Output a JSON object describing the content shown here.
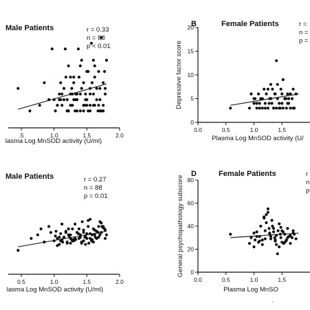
{
  "chart_data": [
    {
      "type": "scatter",
      "panel": "A",
      "letter": "",
      "title": "Male  Patients",
      "xlabel": "lasma Log MnSOD activity (U/ml)",
      "ylabel": "",
      "xlim": [
        0.3,
        2.0
      ],
      "ylim": [
        0,
        20
      ],
      "xticks": [
        0.5,
        1.0,
        1.5,
        2.0
      ],
      "xtick_labels": [
        ".5",
        "1.0",
        "1.5",
        "2.0"
      ],
      "yticks": [],
      "ytick_labels": [],
      "stats": [
        "r = 0.33",
        "n = 88",
        "p < 0.01"
      ],
      "fit": {
        "x": [
          0.45,
          1.8
        ],
        "y": [
          3.3,
          7.8
        ]
      },
      "x": [
        0.45,
        0.63,
        0.78,
        0.85,
        0.92,
        1.0,
        1.02,
        1.05,
        1.08,
        1.1,
        1.12,
        1.15,
        1.18,
        1.2,
        1.22,
        1.25,
        1.28,
        1.3,
        1.33,
        1.35,
        1.38,
        1.4,
        1.42,
        1.45,
        1.48,
        1.5,
        1.52,
        1.55,
        1.58,
        1.6,
        1.62,
        1.65,
        1.68,
        1.7,
        1.72,
        1.75,
        1.78,
        1.8,
        1.05,
        1.12,
        1.2,
        1.27,
        1.33,
        1.4,
        1.47,
        1.55,
        1.62,
        1.7,
        1.15,
        1.25,
        1.35,
        1.45,
        1.55,
        1.65,
        1.75,
        1.1,
        1.3,
        1.5,
        1.7,
        1.22,
        1.42,
        1.6,
        1.77,
        0.97,
        1.17,
        1.37,
        1.57,
        1.72,
        1.32,
        1.52,
        1.67,
        1.25,
        1.45,
        1.62,
        1.78,
        1.08,
        1.28,
        1.48,
        1.68,
        1.35,
        1.55,
        1.75,
        1.2,
        1.4,
        1.6,
        1.1,
        1.3,
        1.5
      ],
      "y": [
        7,
        3,
        4,
        8,
        5,
        5,
        3,
        4,
        6,
        5,
        4,
        7,
        9,
        5,
        3,
        6,
        4,
        8,
        6,
        5,
        9,
        3,
        7,
        4,
        6,
        5,
        10,
        3,
        8,
        6,
        4,
        7,
        10,
        5,
        3,
        8,
        6,
        12,
        4,
        6,
        3,
        7,
        5,
        11,
        4,
        6,
        9,
        3,
        5,
        4,
        6,
        3,
        7,
        5,
        4,
        8,
        9,
        10,
        7,
        11,
        12,
        12,
        10,
        14,
        14,
        14,
        15,
        16,
        3,
        3,
        3,
        9,
        8,
        11,
        7,
        5,
        6,
        5,
        4,
        3,
        4,
        3,
        3,
        6,
        4,
        5,
        5,
        4
      ]
    },
    {
      "type": "scatter",
      "panel": "B",
      "letter": "B",
      "title": "Female  Patients",
      "xlabel": "Plasma Log MnSOD activity (U/",
      "ylabel": "Depressive factor score",
      "xlim": [
        0.0,
        2.0
      ],
      "ylim": [
        0,
        20
      ],
      "xticks": [
        0.0,
        0.5,
        1.0,
        1.5
      ],
      "xtick_labels": [
        "0.0",
        "0.5",
        "1.0",
        "1.5"
      ],
      "yticks": [
        0,
        5,
        10,
        15,
        20
      ],
      "ytick_labels": [
        "0",
        "5",
        "10",
        "15",
        "20"
      ],
      "stats": [
        "r =",
        "n =",
        "p ="
      ],
      "fit": {
        "x": [
          0.58,
          1.8
        ],
        "y": [
          3.6,
          6.0
        ]
      },
      "x": [
        0.58,
        0.92,
        0.95,
        1.0,
        1.02,
        1.05,
        1.08,
        1.1,
        1.12,
        1.15,
        1.18,
        1.2,
        1.22,
        1.25,
        1.28,
        1.3,
        1.32,
        1.35,
        1.38,
        1.4,
        1.42,
        1.45,
        1.48,
        1.5,
        1.52,
        1.55,
        1.58,
        1.6,
        1.62,
        1.65,
        1.68,
        1.7,
        1.72,
        1.75,
        1.0,
        1.1,
        1.2,
        1.3,
        1.4,
        1.5,
        1.6,
        1.7,
        1.15,
        1.25,
        1.35,
        1.45,
        1.55,
        1.65,
        1.05,
        1.33,
        1.57,
        1.27,
        1.47,
        1.37,
        1.42,
        1.52,
        1.62
      ],
      "y": [
        3,
        3,
        6,
        4,
        5,
        3,
        6,
        4,
        5,
        3,
        7,
        4,
        6,
        3,
        5,
        8,
        4,
        3,
        6,
        13,
        5,
        3,
        7,
        4,
        9,
        5,
        3,
        6,
        4,
        3,
        5,
        7,
        3,
        6,
        5,
        3,
        3,
        5,
        3,
        6,
        4,
        3,
        5,
        7,
        3,
        4,
        5,
        6,
        4,
        7,
        5,
        4,
        3,
        6,
        8,
        3,
        5
      ]
    },
    {
      "type": "scatter",
      "panel": "C",
      "letter": "",
      "title": "Male  Patients",
      "xlabel": "lasma Log MnSOD activity (U/ml)",
      "ylabel": "",
      "xlim": [
        0.3,
        2.0
      ],
      "ylim": [
        0,
        80
      ],
      "xticks": [
        0.5,
        1.0,
        1.5,
        2.0
      ],
      "xtick_labels": [
        "0.5",
        "1.0",
        "1.5",
        "2.0"
      ],
      "yticks": [],
      "ytick_labels": [],
      "stats": [
        "r = 0.27",
        "n = 88",
        "p = 0.01"
      ],
      "fit": {
        "x": [
          0.45,
          1.8
        ],
        "y": [
          23,
          36
        ]
      },
      "x": [
        0.45,
        0.65,
        0.75,
        0.8,
        0.85,
        0.92,
        0.95,
        1.0,
        1.02,
        1.05,
        1.08,
        1.1,
        1.12,
        1.15,
        1.18,
        1.2,
        1.22,
        1.25,
        1.28,
        1.3,
        1.32,
        1.35,
        1.38,
        1.4,
        1.42,
        1.45,
        1.48,
        1.5,
        1.52,
        1.55,
        1.58,
        1.6,
        1.62,
        1.65,
        1.68,
        1.7,
        1.72,
        1.75,
        1.78,
        1.8,
        1.05,
        1.1,
        1.15,
        1.2,
        1.25,
        1.3,
        1.35,
        1.4,
        1.45,
        1.5,
        1.55,
        1.6,
        1.65,
        1.7,
        1.75,
        1.12,
        1.22,
        1.32,
        1.42,
        1.52,
        1.62,
        1.72,
        1.08,
        1.18,
        1.28,
        1.38,
        1.48,
        1.58,
        1.68,
        1.78,
        1.27,
        1.37,
        1.47,
        1.57,
        1.67,
        1.77,
        1.03,
        1.13,
        1.23,
        1.33,
        1.43,
        1.53,
        1.63,
        1.73,
        1.25,
        1.45,
        1.65,
        1.55
      ],
      "y": [
        20,
        30,
        33,
        38,
        27,
        40,
        35,
        28,
        32,
        30,
        25,
        34,
        29,
        31,
        36,
        27,
        33,
        30,
        38,
        28,
        42,
        35,
        30,
        33,
        27,
        37,
        32,
        30,
        40,
        34,
        29,
        38,
        33,
        36,
        31,
        44,
        35,
        40,
        37,
        33,
        24,
        28,
        31,
        26,
        33,
        29,
        35,
        31,
        28,
        34,
        30,
        27,
        36,
        33,
        39,
        42,
        38,
        30,
        26,
        45,
        37,
        43,
        31,
        35,
        28,
        38,
        25,
        33,
        40,
        30,
        29,
        34,
        31,
        28,
        35,
        38,
        36,
        27,
        32,
        29,
        44,
        26,
        31,
        40,
        26,
        35,
        30,
        46
      ]
    },
    {
      "type": "scatter",
      "panel": "D",
      "letter": "D",
      "title": "Female  Patients",
      "xlabel": "Plasma Log MnSO",
      "ylabel": "General psychopathology subscore",
      "xlim": [
        0.0,
        2.0
      ],
      "ylim": [
        0,
        80
      ],
      "xticks": [
        0.0,
        0.5,
        1.0,
        1.5
      ],
      "xtick_labels": [
        "0.0",
        "0.5",
        "1.0",
        "1.5"
      ],
      "yticks": [
        0,
        20,
        40,
        60,
        80
      ],
      "ytick_labels": [
        "0",
        "20",
        "40",
        "60",
        "80"
      ],
      "stats": [
        "r",
        "n =",
        "p ="
      ],
      "fit": {
        "x": [
          0.58,
          1.8
        ],
        "y": [
          30,
          34
        ]
      },
      "x": [
        0.58,
        0.92,
        0.95,
        1.0,
        1.02,
        1.05,
        1.08,
        1.1,
        1.12,
        1.15,
        1.18,
        1.2,
        1.22,
        1.25,
        1.28,
        1.3,
        1.32,
        1.35,
        1.38,
        1.4,
        1.42,
        1.45,
        1.48,
        1.5,
        1.52,
        1.55,
        1.58,
        1.6,
        1.62,
        1.65,
        1.68,
        1.7,
        1.72,
        1.75,
        1.0,
        1.1,
        1.2,
        1.3,
        1.4,
        1.5,
        1.6,
        1.7,
        1.15,
        1.25,
        1.35,
        1.45,
        1.55,
        1.65,
        1.05,
        1.22,
        1.27,
        1.37,
        1.47,
        1.57,
        1.33,
        1.43,
        1.53,
        1.63,
        1.18,
        1.28,
        1.38,
        1.48
      ],
      "y": [
        33,
        25,
        30,
        22,
        28,
        35,
        26,
        31,
        40,
        24,
        48,
        36,
        50,
        55,
        33,
        29,
        45,
        38,
        27,
        32,
        16,
        42,
        30,
        26,
        35,
        33,
        28,
        38,
        31,
        25,
        30,
        36,
        33,
        29,
        34,
        27,
        29,
        31,
        24,
        36,
        30,
        34,
        28,
        52,
        35,
        22,
        26,
        32,
        31,
        43,
        38,
        30,
        33,
        27,
        40,
        36,
        25,
        31,
        47,
        34,
        28,
        39
      ]
    }
  ]
}
